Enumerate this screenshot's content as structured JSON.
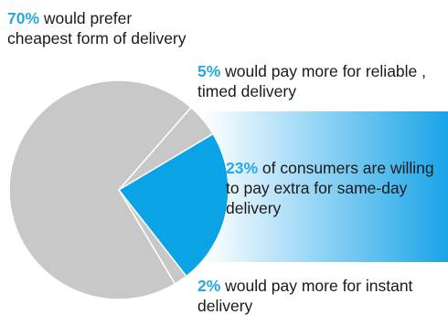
{
  "chart_data": {
    "type": "pie",
    "slices": [
      {
        "value": 70,
        "pct_label": "70%",
        "text": "would prefer cheapest form of delivery",
        "color": "#c8c8c8"
      },
      {
        "value": 5,
        "pct_label": "5%",
        "text": "would pay more for reliable , timed delivery",
        "color": "#c8c8c8"
      },
      {
        "value": 23,
        "pct_label": "23%",
        "text": "of consumers are willing to pay extra for same-day delivery",
        "color": "#0aa3e6",
        "highlight": true
      },
      {
        "value": 2,
        "pct_label": "2%",
        "text": "would pay more for instant delivery",
        "color": "#c8c8c8"
      }
    ],
    "colors": {
      "accent_text": "#29a8e0",
      "highlight_band_start": "#ffffff",
      "highlight_band_end": "#1aa4e8",
      "slice_border": "#ffffff"
    }
  }
}
